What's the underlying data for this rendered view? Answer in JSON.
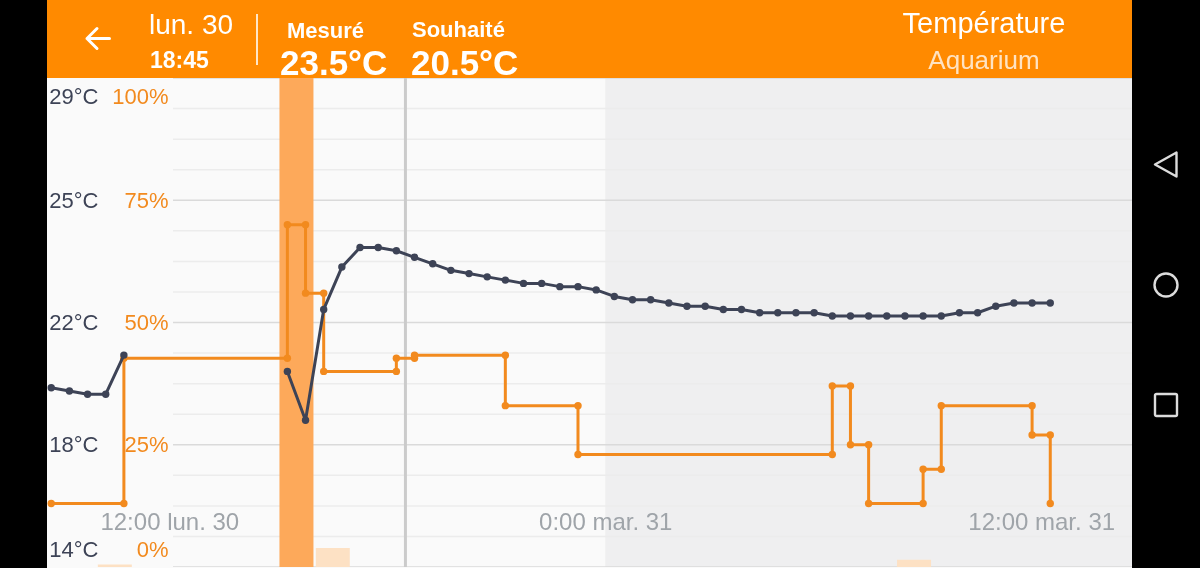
{
  "chart_data": {
    "type": "line",
    "title": "Température",
    "subtitle": "Aquarium",
    "annotations": [
      "lun. 30",
      "18:45",
      "Mesuré",
      "23.5°C",
      "Souhaité",
      "20.5°C"
    ],
    "xlim": [
      "--03-30T08:38",
      "--03-31T14:30"
    ],
    "xticks": [
      {
        "value": "--03-30T12:00",
        "label": "12:00 lun. 30"
      },
      {
        "value": "--03-31T00:00",
        "label": "0:00 mar. 31"
      },
      {
        "value": "--03-31T12:00",
        "label": "12:00 mar. 31"
      }
    ],
    "ylim": [
      0,
      100
    ],
    "yticks": [
      {
        "value": 0,
        "label": "0%"
      },
      {
        "value": 6.25,
        "label": null
      },
      {
        "value": 12.5,
        "label": null
      },
      {
        "value": 18.75,
        "label": null
      },
      {
        "value": 25,
        "label": "25%"
      },
      {
        "value": 31.25,
        "label": null
      },
      {
        "value": 37.5,
        "label": null
      },
      {
        "value": 43.75,
        "label": null
      },
      {
        "value": 50,
        "label": "50%"
      },
      {
        "value": 56.25,
        "label": null
      },
      {
        "value": 62.5,
        "label": null
      },
      {
        "value": 68.75,
        "label": null
      },
      {
        "value": 75,
        "label": "75%"
      },
      {
        "value": 81.25,
        "label": null
      },
      {
        "value": 87.5,
        "label": null
      },
      {
        "value": 93.75,
        "label": null
      },
      {
        "value": 100,
        "label": "100%"
      }
    ],
    "y2lim": [
      14,
      29
    ],
    "y2ticks": [
      {
        "value": 14,
        "label": "14°C"
      },
      {
        "value": 17.75,
        "label": "18°C"
      },
      {
        "value": 21.5,
        "label": "22°C"
      },
      {
        "value": 25.25,
        "label": "25°C"
      },
      {
        "value": 29,
        "label": "29°C"
      }
    ],
    "grid": "y",
    "marker": "circle",
    "series": [
      {
        "type": "bar",
        "colors": [
          "#fde1c4",
          "#fda95a",
          "#fde1c4",
          "#fde1c4"
        ],
        "x": [
          "--03-30T10:30",
          "--03-30T15:30",
          "--03-30T16:30",
          "--03-31T08:30"
        ],
        "values": [
          0.5,
          100,
          3.9,
          1.5
        ]
      },
      {
        "color": "#f28a1e",
        "x": [
          "--03-30T08:45",
          "--03-30T10:45",
          "--03-30T10:45",
          "--03-30T15:15",
          "--03-30T15:15",
          "--03-30T15:45",
          "--03-30T15:45",
          "--03-30T16:15",
          "--03-30T16:15",
          "--03-30T18:15",
          "--03-30T18:15",
          "--03-30T18:45",
          "--03-30T18:45",
          "--03-30T21:15",
          "--03-30T21:15",
          "--03-30T23:15",
          "--03-30T23:15",
          "--03-31T06:15",
          "--03-31T06:15",
          "--03-31T06:45",
          "--03-31T06:45",
          "--03-31T07:15",
          "--03-31T07:15",
          "--03-31T08:45",
          "--03-31T08:45",
          "--03-31T09:15",
          "--03-31T09:15",
          "--03-31T11:45",
          "--03-31T11:45",
          "--03-31T12:15",
          "--03-31T12:15"
        ],
        "values": [
          13,
          13,
          42.7,
          42.7,
          70,
          70,
          56,
          56,
          40,
          40,
          42.7,
          42.7,
          43.3,
          43.3,
          33,
          33,
          23,
          23,
          37,
          37,
          25,
          25,
          13,
          13,
          20,
          20,
          33,
          33,
          27,
          27,
          13
        ]
      },
      {
        "axis": "y2",
        "color": "#3d4356",
        "x": [
          "--03-30T08:45",
          "--03-30T09:15",
          "--03-30T09:45",
          "--03-30T10:15",
          "--03-30T10:45",
          "--03-30T11:15",
          "--03-30T15:15",
          "--03-30T15:45",
          "--03-30T16:15",
          "--03-30T16:45",
          "--03-30T17:15",
          "--03-30T17:45",
          "--03-30T18:15",
          "--03-30T18:45",
          "--03-30T19:15",
          "--03-30T19:45",
          "--03-30T20:15",
          "--03-30T20:45",
          "--03-30T21:15",
          "--03-30T21:45",
          "--03-30T22:15",
          "--03-30T22:45",
          "--03-30T23:15",
          "--03-30T23:45",
          "--03-31T00:15",
          "--03-31T00:45",
          "--03-31T01:15",
          "--03-31T01:45",
          "--03-31T02:15",
          "--03-31T02:45",
          "--03-31T03:15",
          "--03-31T03:45",
          "--03-31T04:15",
          "--03-31T04:45",
          "--03-31T05:15",
          "--03-31T05:45",
          "--03-31T06:15",
          "--03-31T06:45",
          "--03-31T07:15",
          "--03-31T07:45",
          "--03-31T08:15",
          "--03-31T08:45",
          "--03-31T09:15",
          "--03-31T09:45",
          "--03-31T10:15",
          "--03-31T10:45",
          "--03-31T11:15",
          "--03-31T11:45",
          "--03-31T12:15"
        ],
        "values": [
          19.5,
          19.4,
          19.3,
          19.3,
          20.5,
          null,
          20.0,
          18.5,
          21.9,
          23.2,
          23.8,
          23.8,
          23.7,
          23.5,
          23.3,
          23.1,
          23.0,
          22.9,
          22.8,
          22.7,
          22.7,
          22.6,
          22.6,
          22.5,
          22.3,
          22.2,
          22.2,
          22.1,
          22.0,
          22.0,
          21.9,
          21.9,
          21.8,
          21.8,
          21.8,
          21.8,
          21.7,
          21.7,
          21.7,
          21.7,
          21.7,
          21.7,
          21.7,
          21.8,
          21.8,
          22.0,
          22.1,
          22.1,
          22.1
        ]
      }
    ],
    "ref_lines": [
      {
        "axis": "x",
        "value": "--03-30T18:30",
        "color": "#cbcbcb"
      }
    ],
    "bands": [
      {
        "axis": "x",
        "from": "--03-31T00:00",
        "to": "--03-31T14:30",
        "color": "#efeff0"
      }
    ]
  }
}
